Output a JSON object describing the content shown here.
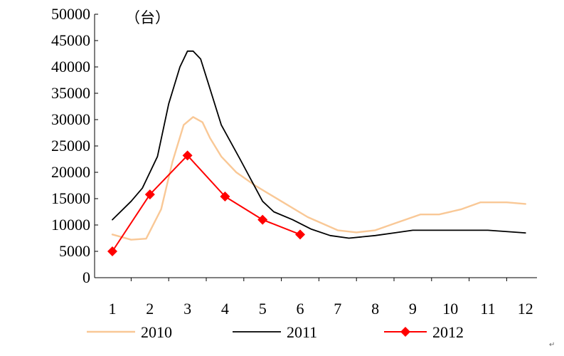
{
  "chart_data": {
    "type": "line",
    "title": "",
    "xlabel": "",
    "ylabel": "",
    "unit_label": "（台）",
    "x": [
      1,
      2,
      3,
      4,
      5,
      6,
      7,
      8,
      9,
      10,
      11,
      12
    ],
    "x_tick_labels": [
      "1",
      "2",
      "3",
      "4",
      "5",
      "6",
      "7",
      "8",
      "9",
      "10",
      "11",
      "12"
    ],
    "ylim": [
      0,
      50000
    ],
    "y_ticks": [
      0,
      5000,
      10000,
      15000,
      20000,
      25000,
      30000,
      35000,
      40000,
      45000,
      50000
    ],
    "y_tick_labels": [
      "0",
      "5000",
      "10000",
      "15000",
      "20000",
      "25000",
      "30000",
      "35000",
      "40000",
      "45000",
      "50000"
    ],
    "grid": false,
    "legend_position": "bottom",
    "series": [
      {
        "name": "2010",
        "color": "#f9c896",
        "marker": "none",
        "points": [
          [
            1,
            8200
          ],
          [
            1.5,
            7200
          ],
          [
            1.9,
            7400
          ],
          [
            2.3,
            13000
          ],
          [
            2.6,
            22000
          ],
          [
            2.9,
            29000
          ],
          [
            3.15,
            30500
          ],
          [
            3.4,
            29500
          ],
          [
            3.6,
            26500
          ],
          [
            3.9,
            23000
          ],
          [
            4.3,
            20000
          ],
          [
            4.8,
            17500
          ],
          [
            5.5,
            14500
          ],
          [
            6.2,
            11500
          ],
          [
            7,
            9000
          ],
          [
            7.5,
            8600
          ],
          [
            8,
            9000
          ],
          [
            8.6,
            10500
          ],
          [
            9.2,
            12000
          ],
          [
            9.7,
            12000
          ],
          [
            10.3,
            13000
          ],
          [
            10.8,
            14300
          ],
          [
            11.5,
            14300
          ],
          [
            12,
            14000
          ]
        ]
      },
      {
        "name": "2011",
        "color": "#000000",
        "marker": "none",
        "points": [
          [
            1,
            11000
          ],
          [
            1.5,
            14500
          ],
          [
            1.8,
            17000
          ],
          [
            2.2,
            23000
          ],
          [
            2.5,
            33000
          ],
          [
            2.8,
            40000
          ],
          [
            3.0,
            43000
          ],
          [
            3.15,
            43000
          ],
          [
            3.35,
            41500
          ],
          [
            3.55,
            37000
          ],
          [
            3.9,
            29000
          ],
          [
            4.4,
            22500
          ],
          [
            5.0,
            14500
          ],
          [
            5.3,
            12500
          ],
          [
            5.8,
            11000
          ],
          [
            6.3,
            9200
          ],
          [
            6.8,
            8000
          ],
          [
            7.3,
            7500
          ],
          [
            8,
            8000
          ],
          [
            8.5,
            8500
          ],
          [
            9,
            9000
          ],
          [
            10,
            9000
          ],
          [
            11,
            9000
          ],
          [
            12,
            8500
          ]
        ]
      },
      {
        "name": "2012",
        "color": "#ff0000",
        "marker": "diamond",
        "points": [
          [
            1,
            5000
          ],
          [
            2,
            15800
          ],
          [
            3,
            23200
          ],
          [
            4,
            15400
          ],
          [
            5,
            11000
          ],
          [
            6,
            8200
          ]
        ]
      }
    ]
  }
}
